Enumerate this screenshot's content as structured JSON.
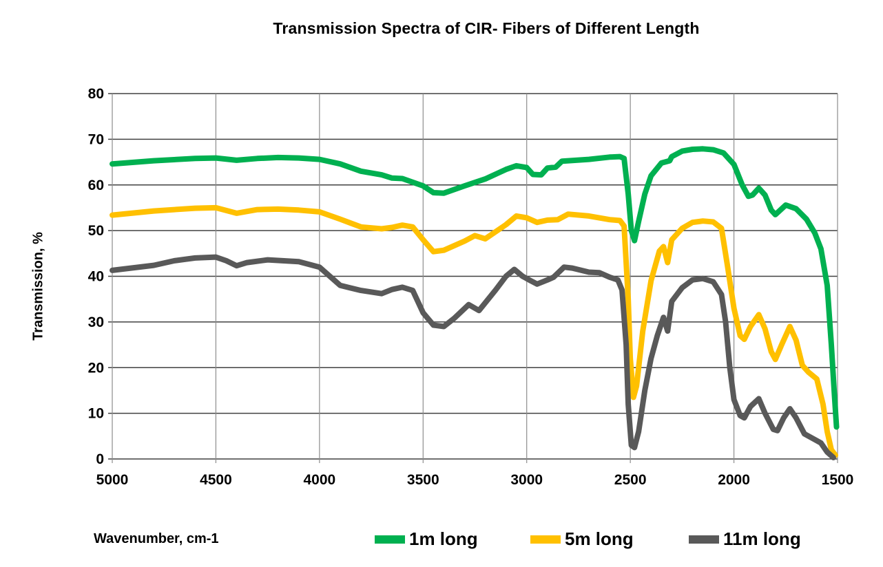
{
  "chart_data": {
    "type": "line",
    "title": "Transmission  Spectra  of  CIR- Fibers of Different Length",
    "xlabel": "Wavenumber, cm-1",
    "ylabel": "Transmission, %",
    "xlim": [
      5000,
      1500
    ],
    "ylim": [
      0,
      80
    ],
    "x_reversed": true,
    "xticks": [
      "5000",
      "4500",
      "4000",
      "3500",
      "3000",
      "2500",
      "2000",
      "1500"
    ],
    "yticks": [
      "0",
      "10",
      "20",
      "30",
      "40",
      "50",
      "60",
      "70",
      "80"
    ],
    "grid": true,
    "legend_position": "bottom",
    "series": [
      {
        "name": "1m long",
        "color": "#00b050",
        "points": [
          [
            5000,
            64.6
          ],
          [
            4800,
            65.3
          ],
          [
            4600,
            65.8
          ],
          [
            4500,
            65.9
          ],
          [
            4400,
            65.4
          ],
          [
            4300,
            65.8
          ],
          [
            4200,
            66.0
          ],
          [
            4100,
            65.9
          ],
          [
            4000,
            65.6
          ],
          [
            3900,
            64.6
          ],
          [
            3800,
            63.0
          ],
          [
            3700,
            62.2
          ],
          [
            3650,
            61.5
          ],
          [
            3600,
            61.4
          ],
          [
            3500,
            59.8
          ],
          [
            3450,
            58.3
          ],
          [
            3400,
            58.2
          ],
          [
            3300,
            59.8
          ],
          [
            3200,
            61.3
          ],
          [
            3100,
            63.4
          ],
          [
            3050,
            64.2
          ],
          [
            3000,
            63.8
          ],
          [
            2970,
            62.3
          ],
          [
            2930,
            62.2
          ],
          [
            2900,
            63.7
          ],
          [
            2860,
            63.9
          ],
          [
            2830,
            65.2
          ],
          [
            2700,
            65.6
          ],
          [
            2600,
            66.1
          ],
          [
            2550,
            66.2
          ],
          [
            2530,
            65.8
          ],
          [
            2510,
            58.0
          ],
          [
            2495,
            50.0
          ],
          [
            2480,
            47.8
          ],
          [
            2460,
            52.0
          ],
          [
            2430,
            58.0
          ],
          [
            2400,
            62.0
          ],
          [
            2350,
            64.8
          ],
          [
            2310,
            65.3
          ],
          [
            2300,
            66.2
          ],
          [
            2250,
            67.4
          ],
          [
            2200,
            67.8
          ],
          [
            2150,
            67.9
          ],
          [
            2100,
            67.7
          ],
          [
            2050,
            67.0
          ],
          [
            2000,
            64.5
          ],
          [
            1960,
            60.0
          ],
          [
            1930,
            57.5
          ],
          [
            1910,
            57.8
          ],
          [
            1880,
            59.3
          ],
          [
            1850,
            57.8
          ],
          [
            1820,
            54.5
          ],
          [
            1800,
            53.5
          ],
          [
            1750,
            55.6
          ],
          [
            1700,
            54.8
          ],
          [
            1650,
            52.5
          ],
          [
            1610,
            49.5
          ],
          [
            1580,
            46.0
          ],
          [
            1550,
            38.0
          ],
          [
            1530,
            25.0
          ],
          [
            1515,
            14.0
          ],
          [
            1505,
            7.0
          ]
        ]
      },
      {
        "name": "5m long",
        "color": "#ffc000",
        "points": [
          [
            5000,
            53.4
          ],
          [
            4800,
            54.3
          ],
          [
            4600,
            54.9
          ],
          [
            4500,
            55.0
          ],
          [
            4450,
            54.4
          ],
          [
            4400,
            53.8
          ],
          [
            4300,
            54.6
          ],
          [
            4200,
            54.7
          ],
          [
            4100,
            54.5
          ],
          [
            4000,
            54.1
          ],
          [
            3900,
            52.5
          ],
          [
            3800,
            50.8
          ],
          [
            3700,
            50.4
          ],
          [
            3650,
            50.7
          ],
          [
            3600,
            51.2
          ],
          [
            3550,
            50.8
          ],
          [
            3500,
            48.0
          ],
          [
            3450,
            45.4
          ],
          [
            3400,
            45.7
          ],
          [
            3300,
            47.7
          ],
          [
            3250,
            48.9
          ],
          [
            3200,
            48.2
          ],
          [
            3100,
            51.3
          ],
          [
            3050,
            53.2
          ],
          [
            3000,
            52.8
          ],
          [
            2950,
            51.8
          ],
          [
            2900,
            52.3
          ],
          [
            2850,
            52.4
          ],
          [
            2800,
            53.6
          ],
          [
            2700,
            53.2
          ],
          [
            2600,
            52.4
          ],
          [
            2550,
            52.2
          ],
          [
            2530,
            51.0
          ],
          [
            2510,
            35.0
          ],
          [
            2500,
            22.0
          ],
          [
            2485,
            13.5
          ],
          [
            2470,
            16.0
          ],
          [
            2440,
            28.0
          ],
          [
            2400,
            39.0
          ],
          [
            2360,
            45.5
          ],
          [
            2340,
            46.5
          ],
          [
            2320,
            43.0
          ],
          [
            2300,
            48.0
          ],
          [
            2250,
            50.5
          ],
          [
            2200,
            51.8
          ],
          [
            2150,
            52.1
          ],
          [
            2100,
            51.9
          ],
          [
            2060,
            50.5
          ],
          [
            2030,
            42.0
          ],
          [
            2000,
            33.0
          ],
          [
            1970,
            27.0
          ],
          [
            1950,
            26.2
          ],
          [
            1920,
            29.0
          ],
          [
            1880,
            31.6
          ],
          [
            1850,
            28.5
          ],
          [
            1820,
            23.5
          ],
          [
            1800,
            21.8
          ],
          [
            1770,
            25.0
          ],
          [
            1730,
            29.0
          ],
          [
            1700,
            26.0
          ],
          [
            1670,
            20.5
          ],
          [
            1640,
            19.0
          ],
          [
            1600,
            17.5
          ],
          [
            1570,
            12.0
          ],
          [
            1550,
            6.0
          ],
          [
            1530,
            2.0
          ],
          [
            1510,
            0.8
          ]
        ]
      },
      {
        "name": "11m long",
        "color": "#595959",
        "points": [
          [
            5000,
            41.3
          ],
          [
            4800,
            42.4
          ],
          [
            4700,
            43.4
          ],
          [
            4600,
            44.0
          ],
          [
            4500,
            44.2
          ],
          [
            4450,
            43.4
          ],
          [
            4400,
            42.3
          ],
          [
            4350,
            43.0
          ],
          [
            4250,
            43.6
          ],
          [
            4100,
            43.2
          ],
          [
            4000,
            42.0
          ],
          [
            3950,
            40.0
          ],
          [
            3900,
            38.0
          ],
          [
            3800,
            36.9
          ],
          [
            3700,
            36.2
          ],
          [
            3650,
            37.1
          ],
          [
            3600,
            37.6
          ],
          [
            3550,
            36.9
          ],
          [
            3500,
            32.0
          ],
          [
            3450,
            29.3
          ],
          [
            3400,
            29.0
          ],
          [
            3350,
            30.8
          ],
          [
            3280,
            33.8
          ],
          [
            3230,
            32.5
          ],
          [
            3150,
            37.0
          ],
          [
            3100,
            40.0
          ],
          [
            3060,
            41.5
          ],
          [
            3020,
            40.0
          ],
          [
            2980,
            39.0
          ],
          [
            2950,
            38.3
          ],
          [
            2900,
            39.2
          ],
          [
            2870,
            39.8
          ],
          [
            2820,
            42.0
          ],
          [
            2780,
            41.8
          ],
          [
            2700,
            40.9
          ],
          [
            2650,
            40.8
          ],
          [
            2600,
            39.8
          ],
          [
            2560,
            39.2
          ],
          [
            2540,
            37.0
          ],
          [
            2520,
            25.0
          ],
          [
            2510,
            12.0
          ],
          [
            2495,
            3.0
          ],
          [
            2480,
            2.5
          ],
          [
            2460,
            6.0
          ],
          [
            2430,
            15.0
          ],
          [
            2400,
            22.0
          ],
          [
            2370,
            27.0
          ],
          [
            2340,
            31.0
          ],
          [
            2320,
            28.0
          ],
          [
            2300,
            34.5
          ],
          [
            2250,
            37.5
          ],
          [
            2200,
            39.2
          ],
          [
            2150,
            39.5
          ],
          [
            2100,
            38.8
          ],
          [
            2060,
            36.0
          ],
          [
            2040,
            30.0
          ],
          [
            2020,
            20.0
          ],
          [
            2000,
            13.0
          ],
          [
            1970,
            9.5
          ],
          [
            1950,
            9.0
          ],
          [
            1920,
            11.5
          ],
          [
            1880,
            13.2
          ],
          [
            1850,
            10.0
          ],
          [
            1810,
            6.5
          ],
          [
            1790,
            6.2
          ],
          [
            1760,
            9.0
          ],
          [
            1730,
            11.0
          ],
          [
            1700,
            9.0
          ],
          [
            1660,
            5.5
          ],
          [
            1620,
            4.5
          ],
          [
            1580,
            3.5
          ],
          [
            1550,
            1.5
          ],
          [
            1520,
            0.3
          ]
        ]
      }
    ]
  }
}
